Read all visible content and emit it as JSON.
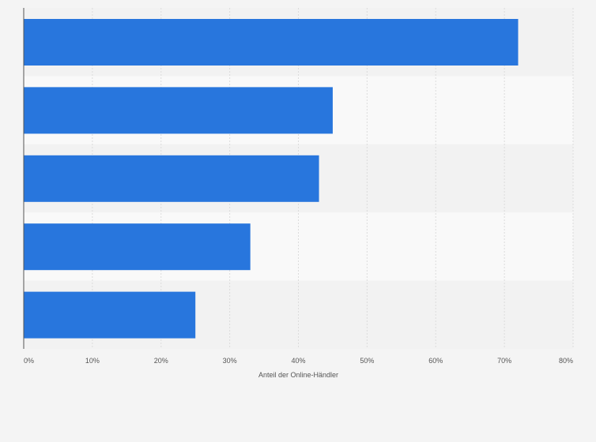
{
  "chart_data": {
    "type": "bar",
    "orientation": "horizontal",
    "categories": [
      "",
      "",
      "",
      "",
      ""
    ],
    "values": [
      72,
      45,
      43,
      33,
      25
    ],
    "title": "",
    "xlabel": "Anteil der Online-Händler",
    "ylabel": "",
    "xlim": [
      0,
      80
    ],
    "x_ticks": [
      0,
      10,
      20,
      30,
      40,
      50,
      60,
      70,
      80
    ],
    "x_tick_labels": [
      "0%",
      "10%",
      "20%",
      "30%",
      "40%",
      "50%",
      "60%",
      "70%",
      "80%"
    ],
    "grid": "vertical-dashed",
    "legend": "none",
    "colors": {
      "bar": "#2876dd",
      "background": "#f4f4f4",
      "band_light": "#f9f9f9",
      "band_dark": "#f2f2f2",
      "grid": "#dcdcdc",
      "axis": "#555555",
      "tick_text": "#555555"
    }
  }
}
